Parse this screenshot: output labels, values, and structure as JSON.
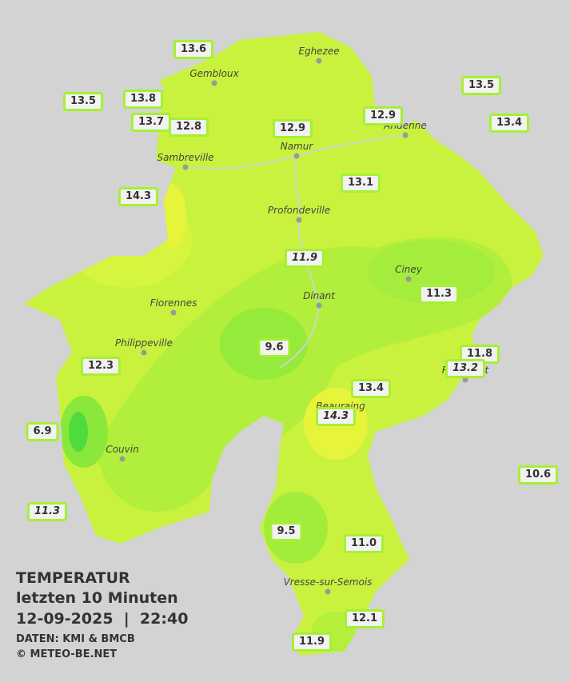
{
  "title": {
    "heading": "TEMPERATUR",
    "period": "letzten 10 Minuten",
    "datetime": "12-09-2025  |  22:40",
    "source": "DATEN: KMI & BMCB",
    "copyright": "© METEO-BE.NET"
  },
  "towns": [
    "Eghezee",
    "Gembloux",
    "Andenne",
    "Namur",
    "Sambreville",
    "Profondeville",
    "Ciney",
    "Dinant",
    "Florennes",
    "Philippeville",
    "Rochefort",
    "Beauraing",
    "Couvin",
    "Vresse-sur-Semois"
  ],
  "stations": [
    {
      "label": "13.6"
    },
    {
      "label": "13.5"
    },
    {
      "label": "13.8"
    },
    {
      "label": "13.7"
    },
    {
      "label": "12.8"
    },
    {
      "label": "12.9"
    },
    {
      "label": "12.9"
    },
    {
      "label": "13.5"
    },
    {
      "label": "13.4"
    },
    {
      "label": "13.1"
    },
    {
      "label": "14.3"
    },
    {
      "label": "11.9",
      "italic": true
    },
    {
      "label": "11.3"
    },
    {
      "label": "9.6"
    },
    {
      "label": "11.8"
    },
    {
      "label": "13.2",
      "italic": true
    },
    {
      "label": "12.3"
    },
    {
      "label": "13.4"
    },
    {
      "label": "14.3",
      "italic": true
    },
    {
      "label": "6.9"
    },
    {
      "label": "10.6"
    },
    {
      "label": "11.3",
      "italic": true
    },
    {
      "label": "9.5"
    },
    {
      "label": "11.0"
    },
    {
      "label": "12.1"
    },
    {
      "label": "11.9"
    }
  ]
}
